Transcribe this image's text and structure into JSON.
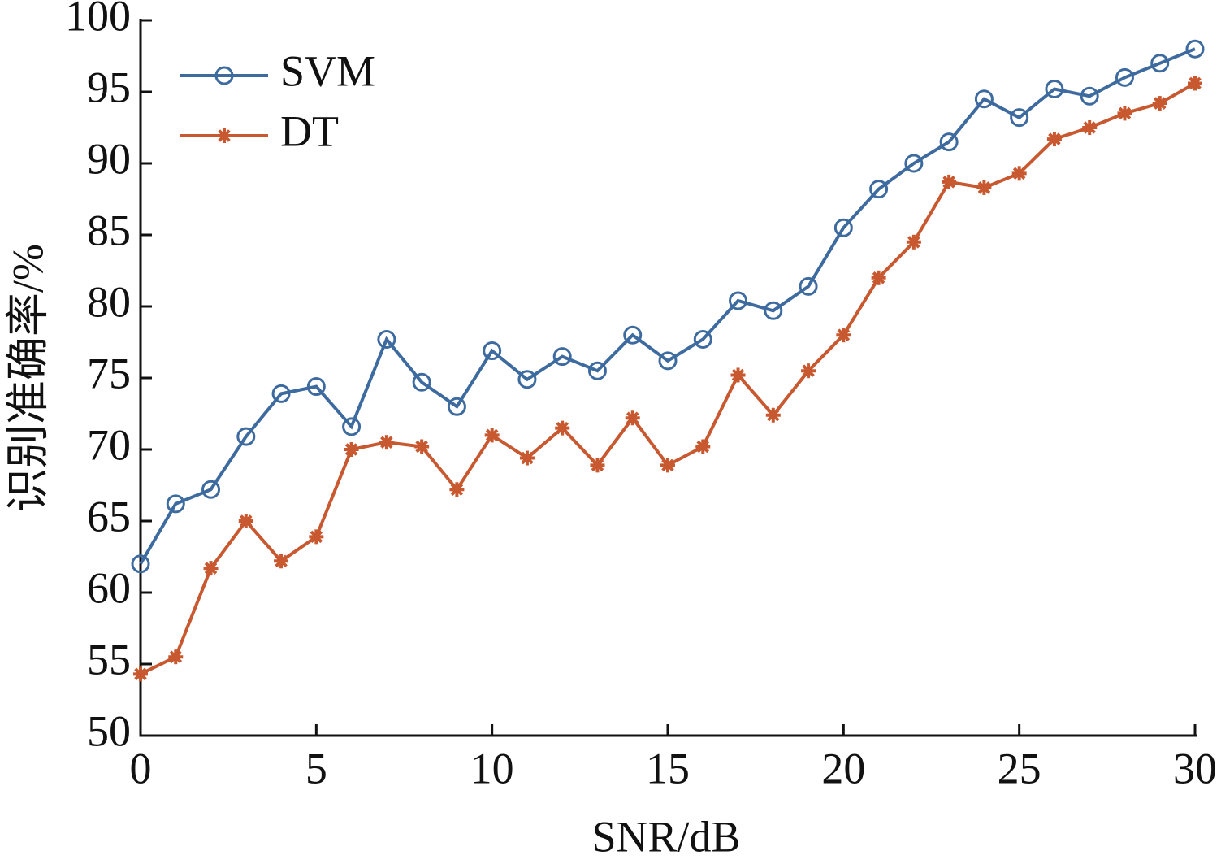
{
  "chart_data": {
    "type": "line",
    "xlabel": "SNR/dB",
    "ylabel": "识别准确率/%",
    "x": [
      0,
      1,
      2,
      3,
      4,
      5,
      6,
      7,
      8,
      9,
      10,
      11,
      12,
      13,
      14,
      15,
      16,
      17,
      18,
      19,
      20,
      21,
      22,
      23,
      24,
      25,
      26,
      27,
      28,
      29,
      30
    ],
    "series": [
      {
        "name": "SVM",
        "color": "#3e6b9f",
        "marker": "circle",
        "values": [
          62.0,
          66.2,
          67.2,
          70.9,
          73.9,
          74.4,
          71.6,
          77.7,
          74.7,
          73.0,
          76.9,
          74.9,
          76.5,
          75.5,
          78.0,
          76.2,
          77.7,
          80.4,
          79.7,
          81.4,
          85.5,
          88.2,
          90.0,
          91.5,
          94.5,
          93.2,
          95.2,
          94.7,
          96.0,
          97.0,
          98.0
        ]
      },
      {
        "name": "DT",
        "color": "#c8582f",
        "marker": "asterisk",
        "values": [
          54.3,
          55.5,
          61.7,
          65.0,
          62.2,
          63.9,
          70.0,
          70.5,
          70.2,
          67.2,
          71.0,
          69.4,
          71.5,
          68.9,
          72.2,
          68.9,
          70.2,
          75.2,
          72.4,
          75.5,
          78.0,
          82.0,
          84.5,
          88.7,
          88.3,
          89.3,
          91.7,
          92.5,
          93.5,
          94.2,
          95.6
        ]
      }
    ],
    "xlim": [
      0,
      30
    ],
    "xticks": [
      0,
      5,
      10,
      15,
      20,
      25,
      30
    ],
    "ylim": [
      50,
      100
    ],
    "yticks": [
      50,
      55,
      60,
      65,
      70,
      75,
      80,
      85,
      90,
      95,
      100
    ],
    "grid": false,
    "legend": "upper left"
  }
}
